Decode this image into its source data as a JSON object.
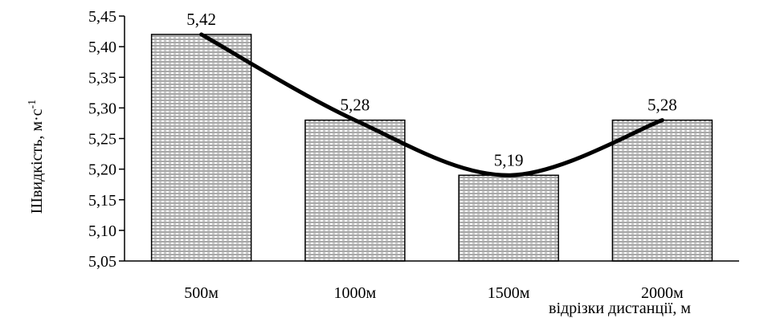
{
  "chart_data": {
    "type": "bar",
    "categories": [
      "500м",
      "1000м",
      "1500м",
      "2000м"
    ],
    "values": [
      5.42,
      5.28,
      5.19,
      5.28
    ],
    "data_labels": [
      "5,42",
      "5,28",
      "5,19",
      "5,28"
    ],
    "title": "",
    "xlabel": "відрізки дистанції, м",
    "ylabel": "Швидкість, м·с",
    "ylabel_superscript": "-1",
    "ylim": [
      5.05,
      5.45
    ],
    "yticks": [
      5.05,
      5.1,
      5.15,
      5.2,
      5.25,
      5.3,
      5.35,
      5.4,
      5.45
    ],
    "ytick_labels": [
      "5,05",
      "5,10",
      "5,15",
      "5,20",
      "5,25",
      "5,30",
      "5,35",
      "5,40",
      "5,45"
    ],
    "trendline": "smooth curve through bar tops",
    "grid": false,
    "legend": "none",
    "colors": {
      "bar_fill": "#c8c8c8",
      "bar_edge": "#000000",
      "trend": "#000000"
    }
  }
}
